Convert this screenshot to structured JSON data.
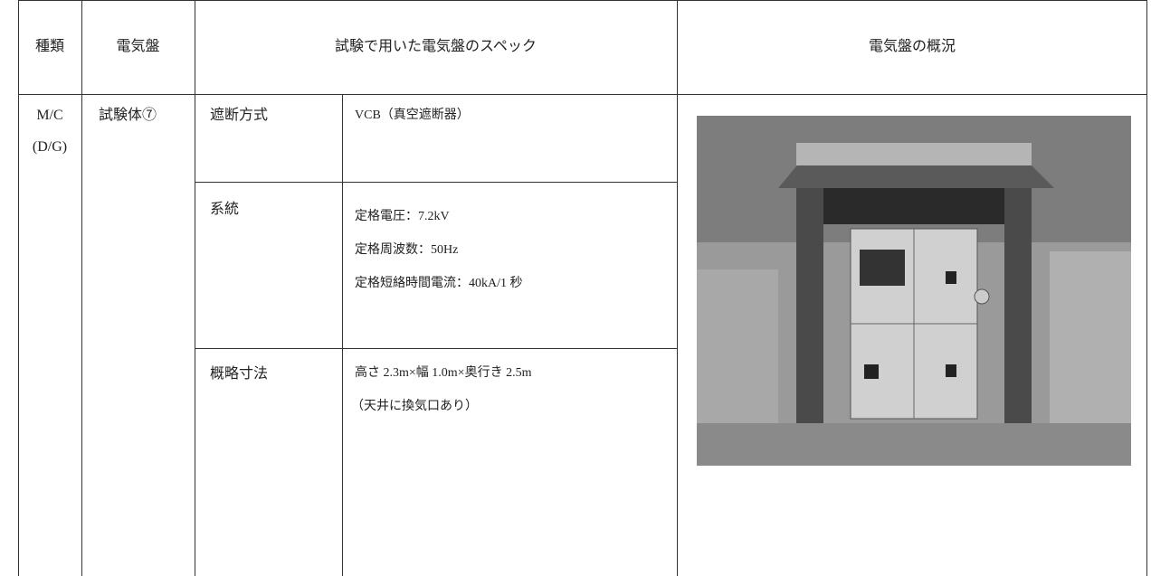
{
  "table": {
    "header": [
      "種類",
      "電気盤",
      "試験で用いた電気盤のスペック",
      "電気盤の概況"
    ],
    "rows": [
      {
        "type": [
          "M/C",
          "(D/G)"
        ],
        "panel": "試験体⑦",
        "specs": [
          {
            "item": "遮断方式",
            "lines": [
              "VCB（真空遮断器）"
            ]
          },
          {
            "item": "系統",
            "lines": [
              "定格電圧：7.2kV",
              "定格周波数：50Hz",
              "定格短絡時間電流：40kA/1 秒"
            ]
          },
          {
            "item": "概略寸法",
            "lines": [
              "高さ 2.3m×幅 1.0m×奥行き 2.5m",
              "（天井に換気口あり）"
            ]
          }
        ]
      }
    ]
  }
}
